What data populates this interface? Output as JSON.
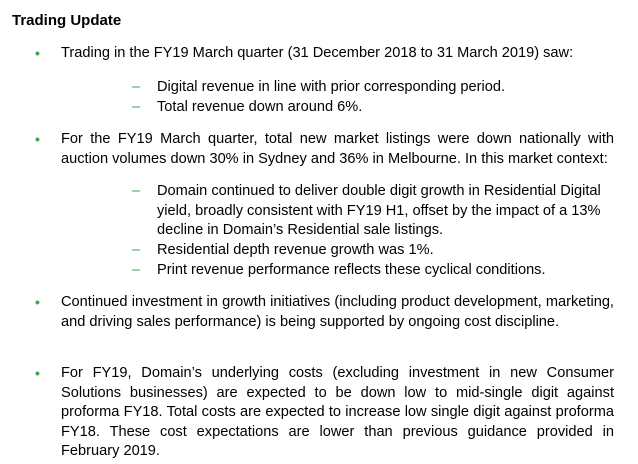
{
  "heading": "Trading Update",
  "bullet_marker": "•",
  "dash_marker": "–",
  "bullets": [
    {
      "text": "Trading in the FY19 March quarter (31 December 2018 to 31 March 2019) saw:",
      "subitems": [
        "Digital revenue in line with prior corresponding period.",
        "Total revenue down around 6%."
      ]
    },
    {
      "text": "For the FY19 March quarter, total new market listings were down nationally with auction volumes down 30% in Sydney and 36% in Melbourne. In this market context:",
      "subitems": [
        "Domain continued to deliver double digit growth in Residential Digital yield, broadly consistent with FY19 H1, offset by the impact of a 13% decline in Domain’s Residential sale listings.",
        "Residential depth revenue growth was 1%.",
        "Print revenue performance reflects these cyclical conditions."
      ]
    },
    {
      "text": "Continued investment in growth initiatives (including product development, marketing, and driving sales performance) is being supported by ongoing cost discipline.",
      "subitems": []
    },
    {
      "text": "For FY19, Domain’s underlying costs (excluding investment in new Consumer Solutions businesses) are expected to be down low to mid-single digit against proforma FY18. Total costs are expected to increase low single digit against proforma FY18. These cost expectations are lower than previous guidance provided in February 2019.",
      "subitems": []
    }
  ]
}
